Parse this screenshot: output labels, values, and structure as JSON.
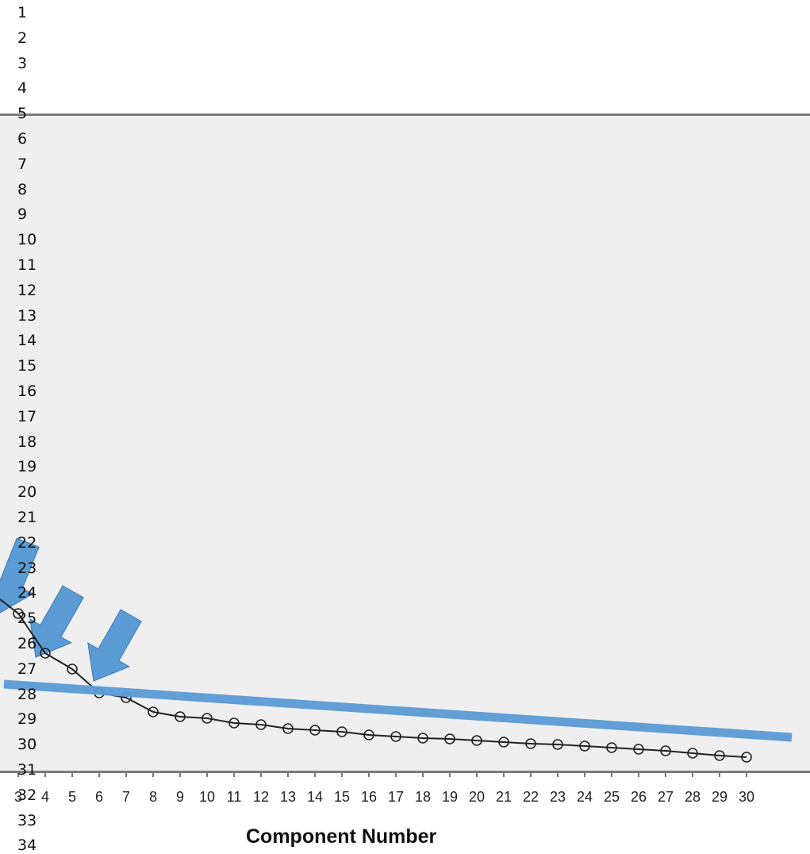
{
  "gutter_lines": [
    "1",
    "2",
    "3",
    "4",
    "5",
    "6",
    "7",
    "8",
    "9",
    "10",
    "11",
    "12",
    "13",
    "14",
    "15",
    "16",
    "17",
    "18",
    "19",
    "20",
    "21",
    "22",
    "23",
    "24",
    "25",
    "26",
    "27",
    "28",
    "29",
    "30",
    "31",
    "32",
    "33",
    "34"
  ],
  "chart_data": {
    "type": "line",
    "title": "",
    "xlabel": "Component Number",
    "ylabel": "",
    "categories": [
      "3",
      "4",
      "5",
      "6",
      "7",
      "8",
      "9",
      "10",
      "11",
      "12",
      "13",
      "14",
      "15",
      "16",
      "17",
      "18",
      "19",
      "20",
      "21",
      "22",
      "23",
      "24",
      "25",
      "26",
      "27",
      "28",
      "29",
      "30"
    ],
    "x": [
      3,
      4,
      5,
      6,
      7,
      8,
      9,
      10,
      11,
      12,
      13,
      14,
      15,
      16,
      17,
      18,
      19,
      20,
      21,
      22,
      23,
      24,
      25,
      26,
      27,
      28,
      29,
      30
    ],
    "series": [
      {
        "values": [
          1.9,
          1.4,
          1.2,
          0.9,
          0.84,
          0.66,
          0.6,
          0.58,
          0.52,
          0.5,
          0.45,
          0.43,
          0.41,
          0.37,
          0.35,
          0.33,
          0.32,
          0.3,
          0.28,
          0.26,
          0.25,
          0.23,
          0.21,
          0.19,
          0.17,
          0.14,
          0.11,
          0.09
        ]
      }
    ],
    "trend_line": {
      "color": "#5b9bd5"
    },
    "arrows": {
      "color": "#5b9bd5",
      "count": 3
    },
    "grid": false
  },
  "colors": {
    "plot_bg": "#efefef",
    "line": "#222222",
    "trend": "#5b9bd5",
    "frame": "#7a7a7a"
  }
}
